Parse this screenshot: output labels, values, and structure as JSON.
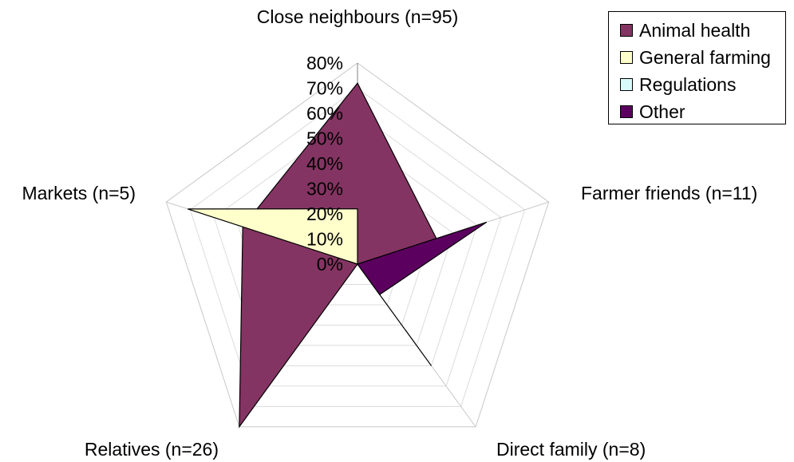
{
  "chart_data": {
    "type": "radar",
    "title": "",
    "categories": [
      "Close neighbours (n=95)",
      "Farmer friends (n=11)",
      "Direct family (n=8)",
      "Relatives (n=26)",
      "Markets (n=5)"
    ],
    "rlim": [
      0,
      80
    ],
    "rticks": [
      "0%",
      "10%",
      "20%",
      "30%",
      "40%",
      "50%",
      "60%",
      "70%",
      "80%"
    ],
    "grid": true,
    "legend_position": "top-right",
    "series": [
      {
        "name": "Animal health",
        "values": [
          72,
          33,
          0,
          80,
          48
        ],
        "color": "#843462"
      },
      {
        "name": "General farming",
        "values": [
          22,
          0,
          50,
          0,
          71
        ],
        "color": "#ffffcc"
      },
      {
        "name": "Regulations",
        "values": [
          0,
          0,
          0,
          0,
          4
        ],
        "color": "#d9fafa"
      },
      {
        "name": "Other",
        "values": [
          0,
          54,
          15,
          0,
          0
        ],
        "color": "#5c0060"
      }
    ]
  }
}
